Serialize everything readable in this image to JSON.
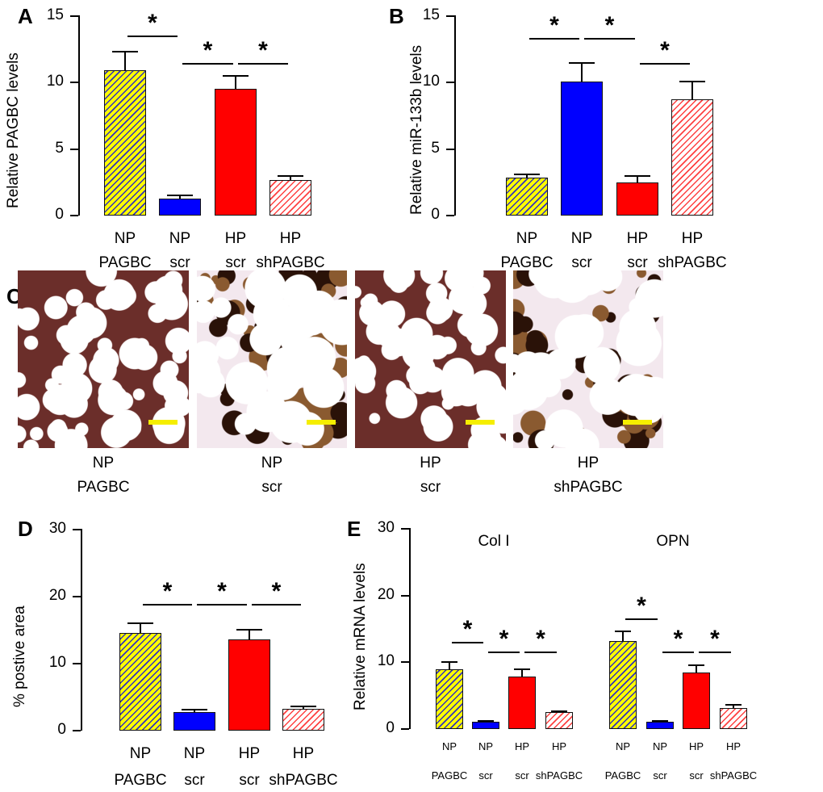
{
  "chart_data": [
    {
      "panel": "A",
      "type": "bar",
      "ylabel": "Relative PAGBC levels",
      "ylim": [
        0,
        15
      ],
      "yticks": [
        0,
        5,
        10,
        15
      ],
      "categories": [
        [
          "NP",
          "PAGBC"
        ],
        [
          "NP",
          "scr"
        ],
        [
          "HP",
          "scr"
        ],
        [
          "HP",
          "shPAGBC"
        ]
      ],
      "values": [
        10.9,
        1.2,
        9.5,
        2.6
      ],
      "errors": [
        1.4,
        0.3,
        1.0,
        0.4
      ],
      "significance": [
        {
          "pair": [
            0,
            1
          ],
          "y": 13.5,
          "label": "*"
        },
        {
          "pair": [
            1,
            2
          ],
          "y": 11.4,
          "label": "*"
        },
        {
          "pair": [
            2,
            3
          ],
          "y": 11.4,
          "label": "*"
        }
      ]
    },
    {
      "panel": "B",
      "type": "bar",
      "ylabel": "Relative miR-133b levels",
      "ylim": [
        0,
        15
      ],
      "yticks": [
        0,
        5,
        10,
        15
      ],
      "categories": [
        [
          "NP",
          "PAGBC"
        ],
        [
          "NP",
          "scr"
        ],
        [
          "HP",
          "scr"
        ],
        [
          "HP",
          "shPAGBC"
        ]
      ],
      "values": [
        2.8,
        10.0,
        2.4,
        8.7
      ],
      "errors": [
        0.3,
        1.5,
        0.6,
        1.4
      ],
      "significance": [
        {
          "pair": [
            0,
            1
          ],
          "y": 13.3,
          "label": "*"
        },
        {
          "pair": [
            1,
            2
          ],
          "y": 13.3,
          "label": "*"
        },
        {
          "pair": [
            2,
            3
          ],
          "y": 11.4,
          "label": "*"
        }
      ]
    },
    {
      "panel": "D",
      "type": "bar",
      "ylabel": "% postive area",
      "ylim": [
        0,
        30
      ],
      "yticks": [
        0,
        10,
        20,
        30
      ],
      "categories": [
        [
          "NP",
          "PAGBC"
        ],
        [
          "NP",
          "scr"
        ],
        [
          "HP",
          "scr"
        ],
        [
          "HP",
          "shPAGBC"
        ]
      ],
      "values": [
        14.5,
        2.7,
        13.5,
        3.1
      ],
      "errors": [
        1.5,
        0.4,
        1.6,
        0.5
      ],
      "significance": [
        {
          "pair": [
            0,
            1
          ],
          "y": 18.8,
          "label": "*"
        },
        {
          "pair": [
            1,
            2
          ],
          "y": 18.8,
          "label": "*"
        },
        {
          "pair": [
            2,
            3
          ],
          "y": 18.8,
          "label": "*"
        }
      ]
    },
    {
      "panel": "E",
      "type": "bar",
      "ylabel": "Relative mRNA levels",
      "ylim": [
        0,
        30
      ],
      "yticks": [
        0,
        10,
        20,
        30
      ],
      "groups": [
        {
          "title": "Col I",
          "categories": [
            [
              "NP",
              "PAGBC"
            ],
            [
              "NP",
              "scr"
            ],
            [
              "HP",
              "scr"
            ],
            [
              "HP",
              "shPAGBC"
            ]
          ],
          "values": [
            8.8,
            1.0,
            7.7,
            2.4
          ],
          "errors": [
            1.2,
            0.2,
            1.2,
            0.3
          ],
          "significance": [
            {
              "pair": [
                0,
                1
              ],
              "y": 12.9,
              "label": "*"
            },
            {
              "pair": [
                1,
                2
              ],
              "y": 11.5,
              "label": "*"
            },
            {
              "pair": [
                2,
                3
              ],
              "y": 11.5,
              "label": "*"
            }
          ]
        },
        {
          "title": "OPN",
          "categories": [
            [
              "NP",
              "PAGBC"
            ],
            [
              "NP",
              "scr"
            ],
            [
              "HP",
              "scr"
            ],
            [
              "HP",
              "shPAGBC"
            ]
          ],
          "values": [
            13.1,
            1.0,
            8.4,
            3.0
          ],
          "errors": [
            1.5,
            0.2,
            1.2,
            0.6
          ],
          "significance": [
            {
              "pair": [
                0,
                1
              ],
              "y": 16.5,
              "label": "*"
            },
            {
              "pair": [
                1,
                2
              ],
              "y": 11.5,
              "label": "*"
            },
            {
              "pair": [
                2,
                3
              ],
              "y": 11.5,
              "label": "*"
            }
          ]
        }
      ]
    }
  ],
  "panel_c": {
    "panel": "C",
    "images": [
      {
        "line1": "NP",
        "line2": "PAGBC",
        "stain": "dense"
      },
      {
        "line1": "NP",
        "line2": "scr",
        "stain": "light"
      },
      {
        "line1": "HP",
        "line2": "scr",
        "stain": "dense"
      },
      {
        "line1": "HP",
        "line2": "shPAGBC",
        "stain": "light"
      }
    ]
  },
  "styles": {
    "bar_colors": [
      "#ffff00",
      "#0000ff",
      "#ff0000",
      "#ffffff"
    ],
    "hatch_colors": [
      "#3030c0",
      null,
      null,
      "#ff4040"
    ],
    "scale_bar_color": "#f5ee00"
  }
}
